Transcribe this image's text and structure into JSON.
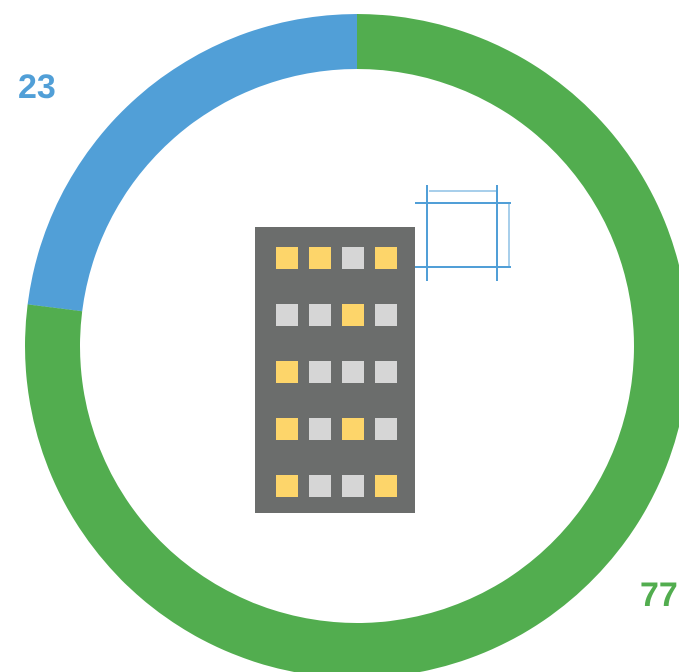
{
  "chart_data": {
    "type": "pie",
    "style": "donut",
    "series": [
      {
        "value": 23,
        "label": "23",
        "color": "#519fd7"
      },
      {
        "value": 77,
        "label": "77",
        "color": "#52ad4f"
      }
    ]
  },
  "icons": {
    "center": "apartment-building-icon",
    "secondary": "floor-plan-dimensions-icon"
  },
  "colors": {
    "building_body": "#6b6d6c",
    "window_lit": "#fdd56a",
    "window_dark": "#d6d6d6",
    "plan_lines": "#519fd7"
  },
  "building": {
    "window_pattern": [
      [
        1,
        1,
        0,
        1
      ],
      [
        0,
        0,
        1,
        0
      ],
      [
        1,
        0,
        0,
        0
      ],
      [
        1,
        0,
        1,
        0
      ],
      [
        1,
        0,
        0,
        1
      ]
    ]
  }
}
